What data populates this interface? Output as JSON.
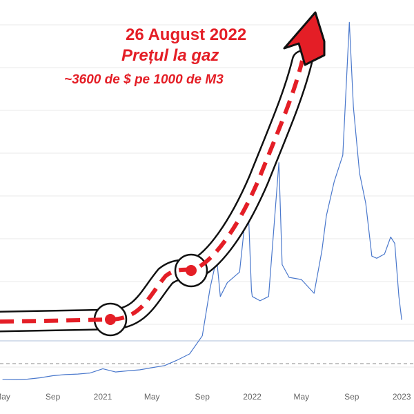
{
  "annotations": {
    "date": "26 August 2022",
    "title": "Prețul la gaz",
    "subtitle": "~3600 de $ pe 1000 de M3"
  },
  "colors": {
    "series": "#4a78cc",
    "arrow": "#e41e26",
    "arrow_outline": "#111111",
    "grid": "#e9e9e9",
    "reference_line": "#aebfd9",
    "dashed_line": "#888888",
    "tick_label": "#666666"
  },
  "chart_data": {
    "type": "line",
    "title": "",
    "xlabel": "",
    "ylabel": "",
    "grid": true,
    "x_tick_labels": [
      "May",
      "Sep",
      "2021",
      "May",
      "Sep",
      "2022",
      "May",
      "Sep",
      "2023"
    ],
    "series": [
      {
        "values": [
          [
            "2020-05",
            4
          ],
          [
            "2020-06",
            3.8
          ],
          [
            "2020-07",
            4.2
          ],
          [
            "2020-08",
            5.5
          ],
          [
            "2020-09",
            7.5
          ],
          [
            "2020-10",
            8.5
          ],
          [
            "2020-11",
            9
          ],
          [
            "2020-12",
            10
          ],
          [
            "2021-01",
            14
          ],
          [
            "2021-02",
            11
          ],
          [
            "2021-03",
            12
          ],
          [
            "2021-04",
            13
          ],
          [
            "2021-05",
            15
          ],
          [
            "2021-06",
            17
          ],
          [
            "2021-07",
            22
          ],
          [
            "2021-08",
            28
          ],
          [
            "2021-09",
            45
          ],
          [
            "2021-09-20",
            90
          ],
          [
            "2021-10-06",
            118
          ],
          [
            "2021-10-15",
            82
          ],
          [
            "2021-11",
            95
          ],
          [
            "2021-12-01",
            105
          ],
          [
            "2021-12-21",
            178
          ],
          [
            "2021-12-30",
            88
          ],
          [
            "2022-01",
            82
          ],
          [
            "2022-01-20",
            78
          ],
          [
            "2022-02-10",
            82
          ],
          [
            "2022-03-07",
            208
          ],
          [
            "2022-03-15",
            112
          ],
          [
            "2022-04",
            100
          ],
          [
            "2022-05",
            98
          ],
          [
            "2022-06-01",
            85
          ],
          [
            "2022-06-20",
            125
          ],
          [
            "2022-07-01",
            158
          ],
          [
            "2022-07-20",
            190
          ],
          [
            "2022-08-10",
            215
          ],
          [
            "2022-08-26",
            340
          ],
          [
            "2022-09-05",
            260
          ],
          [
            "2022-09-20",
            198
          ],
          [
            "2022-10-05",
            170
          ],
          [
            "2022-10-20",
            120
          ],
          [
            "2022-11-01",
            118
          ],
          [
            "2022-11-20",
            122
          ],
          [
            "2022-12-05",
            138
          ],
          [
            "2022-12-15",
            132
          ],
          [
            "2022-12-25",
            82
          ],
          [
            "2023-01",
            60
          ]
        ]
      }
    ]
  }
}
